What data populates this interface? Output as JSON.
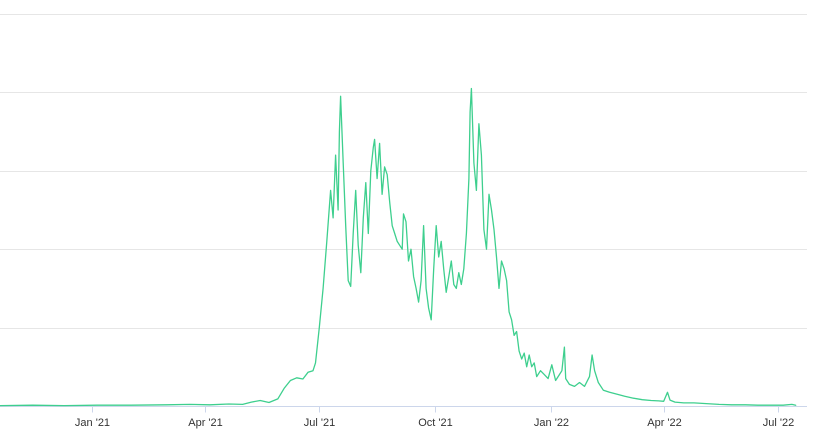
{
  "chart_data": {
    "type": "line",
    "title": "",
    "xlabel": "",
    "ylabel": "",
    "x_axis": {
      "type": "datetime",
      "range": [
        "2020-10-20",
        "2022-07-24"
      ],
      "tick_labels": [
        {
          "date": "2021-01-01",
          "label": "Jan '21"
        },
        {
          "date": "2021-04-01",
          "label": "Apr '21"
        },
        {
          "date": "2021-07-01",
          "label": "Jul '21"
        },
        {
          "date": "2021-10-01",
          "label": "Oct '21"
        },
        {
          "date": "2022-01-01",
          "label": "Jan '22"
        },
        {
          "date": "2022-04-01",
          "label": "Apr '22"
        },
        {
          "date": "2022-07-01",
          "label": "Jul '22"
        }
      ]
    },
    "y_axis": {
      "range": [
        0,
        100
      ],
      "gridlines": [
        0,
        20,
        40,
        60,
        80,
        100
      ],
      "tick_labels_visible": false
    },
    "grid": true,
    "legend": "none",
    "series": [
      {
        "color": "#3ecf8e",
        "points": [
          [
            "2020-10-20",
            0.1
          ],
          [
            "2020-11-15",
            0.2
          ],
          [
            "2020-12-10",
            0.1
          ],
          [
            "2021-01-05",
            0.2
          ],
          [
            "2021-02-01",
            0.2
          ],
          [
            "2021-03-01",
            0.3
          ],
          [
            "2021-03-20",
            0.4
          ],
          [
            "2021-04-05",
            0.3
          ],
          [
            "2021-04-20",
            0.5
          ],
          [
            "2021-05-01",
            0.4
          ],
          [
            "2021-05-08",
            1.0
          ],
          [
            "2021-05-15",
            1.4
          ],
          [
            "2021-05-22",
            0.9
          ],
          [
            "2021-05-29",
            1.8
          ],
          [
            "2021-06-03",
            4.5
          ],
          [
            "2021-06-08",
            6.5
          ],
          [
            "2021-06-13",
            7.2
          ],
          [
            "2021-06-18",
            6.9
          ],
          [
            "2021-06-22",
            8.6
          ],
          [
            "2021-06-26",
            9.0
          ],
          [
            "2021-06-28",
            11.0
          ],
          [
            "2021-07-01",
            20.0
          ],
          [
            "2021-07-04",
            30.0
          ],
          [
            "2021-07-07",
            42.0
          ],
          [
            "2021-07-10",
            55.0
          ],
          [
            "2021-07-12",
            48.0
          ],
          [
            "2021-07-14",
            64.0
          ],
          [
            "2021-07-16",
            50.0
          ],
          [
            "2021-07-17",
            70.0
          ],
          [
            "2021-07-18",
            79.0
          ],
          [
            "2021-07-20",
            62.0
          ],
          [
            "2021-07-22",
            46.0
          ],
          [
            "2021-07-24",
            32.0
          ],
          [
            "2021-07-26",
            30.5
          ],
          [
            "2021-07-28",
            44.0
          ],
          [
            "2021-07-30",
            55.0
          ],
          [
            "2021-08-01",
            41.0
          ],
          [
            "2021-08-03",
            34.0
          ],
          [
            "2021-08-05",
            48.0
          ],
          [
            "2021-08-07",
            57.0
          ],
          [
            "2021-08-09",
            44.0
          ],
          [
            "2021-08-11",
            60.0
          ],
          [
            "2021-08-13",
            66.0
          ],
          [
            "2021-08-14",
            68.0
          ],
          [
            "2021-08-16",
            58.0
          ],
          [
            "2021-08-18",
            67.0
          ],
          [
            "2021-08-20",
            54.0
          ],
          [
            "2021-08-22",
            61.0
          ],
          [
            "2021-08-24",
            59.0
          ],
          [
            "2021-08-26",
            52.0
          ],
          [
            "2021-08-28",
            46.0
          ],
          [
            "2021-08-30",
            44.0
          ],
          [
            "2021-09-01",
            42.0
          ],
          [
            "2021-09-03",
            41.0
          ],
          [
            "2021-09-05",
            40.0
          ],
          [
            "2021-09-06",
            49.0
          ],
          [
            "2021-09-08",
            47.0
          ],
          [
            "2021-09-10",
            37.0
          ],
          [
            "2021-09-12",
            40.0
          ],
          [
            "2021-09-14",
            33.0
          ],
          [
            "2021-09-16",
            30.0
          ],
          [
            "2021-09-18",
            26.5
          ],
          [
            "2021-09-20",
            32.0
          ],
          [
            "2021-09-22",
            46.0
          ],
          [
            "2021-09-24",
            30.0
          ],
          [
            "2021-09-26",
            25.0
          ],
          [
            "2021-09-28",
            22.0
          ],
          [
            "2021-09-30",
            35.0
          ],
          [
            "2021-10-02",
            46.0
          ],
          [
            "2021-10-04",
            38.0
          ],
          [
            "2021-10-06",
            42.0
          ],
          [
            "2021-10-08",
            35.0
          ],
          [
            "2021-10-10",
            29.0
          ],
          [
            "2021-10-12",
            33.0
          ],
          [
            "2021-10-14",
            37.0
          ],
          [
            "2021-10-16",
            31.0
          ],
          [
            "2021-10-18",
            30.0
          ],
          [
            "2021-10-20",
            34.0
          ],
          [
            "2021-10-22",
            31.0
          ],
          [
            "2021-10-24",
            35.0
          ],
          [
            "2021-10-26",
            44.0
          ],
          [
            "2021-10-28",
            58.0
          ],
          [
            "2021-10-29",
            75.0
          ],
          [
            "2021-10-30",
            81.0
          ],
          [
            "2021-11-01",
            62.0
          ],
          [
            "2021-11-03",
            55.0
          ],
          [
            "2021-11-05",
            72.0
          ],
          [
            "2021-11-07",
            64.0
          ],
          [
            "2021-11-09",
            45.0
          ],
          [
            "2021-11-11",
            40.0
          ],
          [
            "2021-11-13",
            54.0
          ],
          [
            "2021-11-15",
            50.0
          ],
          [
            "2021-11-17",
            45.0
          ],
          [
            "2021-11-19",
            38.0
          ],
          [
            "2021-11-21",
            30.0
          ],
          [
            "2021-11-23",
            37.0
          ],
          [
            "2021-11-25",
            35.0
          ],
          [
            "2021-11-27",
            32.0
          ],
          [
            "2021-11-29",
            24.0
          ],
          [
            "2021-12-01",
            22.0
          ],
          [
            "2021-12-03",
            18.0
          ],
          [
            "2021-12-05",
            19.0
          ],
          [
            "2021-12-07",
            14.0
          ],
          [
            "2021-12-09",
            12.0
          ],
          [
            "2021-12-11",
            13.5
          ],
          [
            "2021-12-13",
            10.0
          ],
          [
            "2021-12-15",
            13.0
          ],
          [
            "2021-12-17",
            10.0
          ],
          [
            "2021-12-19",
            11.0
          ],
          [
            "2021-12-21",
            7.5
          ],
          [
            "2021-12-24",
            9.0
          ],
          [
            "2021-12-27",
            8.0
          ],
          [
            "2021-12-30",
            7.0
          ],
          [
            "2022-01-02",
            10.5
          ],
          [
            "2022-01-05",
            6.5
          ],
          [
            "2022-01-08",
            8.0
          ],
          [
            "2022-01-10",
            9.0
          ],
          [
            "2022-01-12",
            15.0
          ],
          [
            "2022-01-13",
            7.0
          ],
          [
            "2022-01-16",
            5.5
          ],
          [
            "2022-01-20",
            5.0
          ],
          [
            "2022-01-24",
            6.0
          ],
          [
            "2022-01-28",
            5.0
          ],
          [
            "2022-02-01",
            7.5
          ],
          [
            "2022-02-03",
            13.0
          ],
          [
            "2022-02-05",
            9.0
          ],
          [
            "2022-02-08",
            6.0
          ],
          [
            "2022-02-12",
            4.0
          ],
          [
            "2022-02-17",
            3.5
          ],
          [
            "2022-02-23",
            3.0
          ],
          [
            "2022-03-01",
            2.5
          ],
          [
            "2022-03-08",
            2.0
          ],
          [
            "2022-03-15",
            1.6
          ],
          [
            "2022-03-22",
            1.4
          ],
          [
            "2022-03-28",
            1.3
          ],
          [
            "2022-04-01",
            1.2
          ],
          [
            "2022-04-04",
            3.5
          ],
          [
            "2022-04-06",
            1.5
          ],
          [
            "2022-04-10",
            1.0
          ],
          [
            "2022-04-17",
            0.8
          ],
          [
            "2022-04-25",
            0.8
          ],
          [
            "2022-05-05",
            0.6
          ],
          [
            "2022-05-15",
            0.4
          ],
          [
            "2022-05-25",
            0.3
          ],
          [
            "2022-06-05",
            0.3
          ],
          [
            "2022-06-15",
            0.2
          ],
          [
            "2022-06-25",
            0.2
          ],
          [
            "2022-07-05",
            0.2
          ],
          [
            "2022-07-12",
            0.4
          ],
          [
            "2022-07-15",
            0.2
          ]
        ]
      }
    ]
  }
}
